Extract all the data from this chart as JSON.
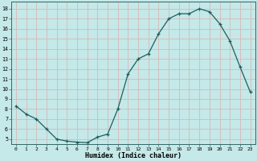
{
  "title": "",
  "xlabel": "Humidex (Indice chaleur)",
  "ylabel": "",
  "background_color": "#c5e8e8",
  "grid_color": "#d8b8b8",
  "line_color": "#1a6060",
  "marker_color": "#1a6060",
  "xlim": [
    -0.5,
    23.5
  ],
  "ylim": [
    4.5,
    18.7
  ],
  "yticks": [
    5,
    6,
    7,
    8,
    9,
    10,
    11,
    12,
    13,
    14,
    15,
    16,
    17,
    18
  ],
  "xticks": [
    0,
    1,
    2,
    3,
    4,
    5,
    6,
    7,
    8,
    9,
    10,
    11,
    12,
    13,
    14,
    15,
    16,
    17,
    18,
    19,
    20,
    21,
    22,
    23
  ],
  "x": [
    0,
    1,
    2,
    3,
    4,
    5,
    6,
    7,
    8,
    9,
    10,
    11,
    12,
    13,
    14,
    15,
    16,
    17,
    18,
    19,
    20,
    21,
    22,
    23
  ],
  "y": [
    8.3,
    7.5,
    7.0,
    6.0,
    5.0,
    4.8,
    4.7,
    4.65,
    5.2,
    5.5,
    8.0,
    11.5,
    13.0,
    13.5,
    15.5,
    17.0,
    17.5,
    17.5,
    18.0,
    17.7,
    16.5,
    14.8,
    12.2,
    9.7
  ]
}
